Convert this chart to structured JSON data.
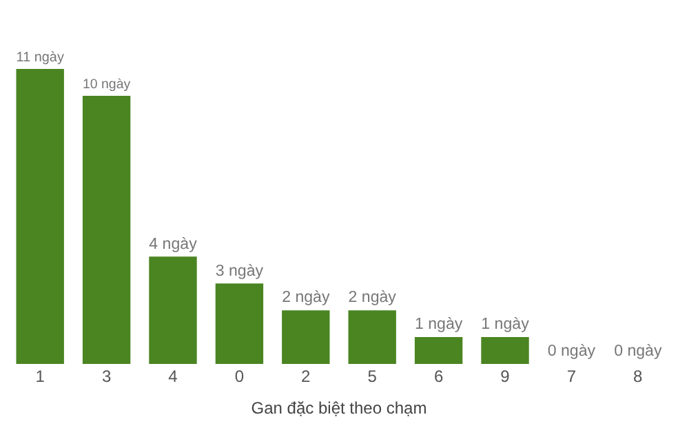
{
  "chart_data": {
    "type": "bar",
    "xlabel": "Gan đặc biệt theo chạm",
    "categories": [
      "1",
      "3",
      "4",
      "0",
      "2",
      "5",
      "6",
      "9",
      "7",
      "8"
    ],
    "values": [
      11,
      10,
      4,
      3,
      2,
      2,
      1,
      1,
      0,
      0
    ],
    "value_labels": [
      "11 ngày",
      "10 ngày",
      "4 ngày",
      "3 ngày",
      "2 ngày",
      "2 ngày",
      "1 ngày",
      "1 ngày",
      "0 ngày",
      "0 ngày"
    ],
    "color": "#4a8522",
    "legend": false
  }
}
